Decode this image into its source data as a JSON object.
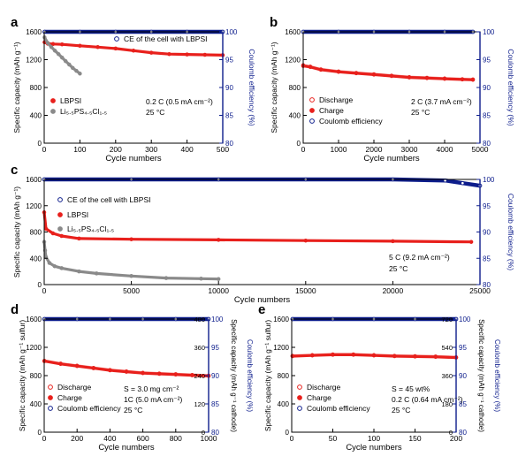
{
  "figure": {
    "colors": {
      "red": "#e8201c",
      "gray": "#8a8a8a",
      "blue": "#0d1d8c",
      "axis": "#000000"
    }
  },
  "chart_data": [
    {
      "panel": "a",
      "type": "line",
      "xlabel": "Cycle numbers",
      "ylabel": "Specific capacity (mAh g⁻¹)",
      "y2label": "Coulomb efficiency (%)",
      "xlim": [
        0,
        500
      ],
      "ylim": [
        0,
        1600
      ],
      "y2lim": [
        80,
        100
      ],
      "xticks": [
        0,
        100,
        200,
        300,
        400,
        500
      ],
      "yticks": [
        0,
        400,
        800,
        1200,
        1600
      ],
      "y2ticks": [
        80,
        85,
        90,
        95,
        100
      ],
      "series": [
        {
          "name": "LBPSI",
          "color": "#e8201c",
          "axis": "left",
          "marker": "filled",
          "x": [
            1,
            10,
            25,
            50,
            100,
            150,
            200,
            250,
            300,
            350,
            400,
            450,
            500
          ],
          "y": [
            1450,
            1430,
            1425,
            1420,
            1400,
            1380,
            1360,
            1330,
            1300,
            1280,
            1275,
            1270,
            1265
          ]
        },
        {
          "name": "Li5.5PS4.5Cl1.5",
          "color": "#8a8a8a",
          "axis": "left",
          "marker": "filled",
          "x": [
            1,
            10,
            20,
            30,
            40,
            50,
            60,
            70,
            80,
            90,
            100
          ],
          "y": [
            1520,
            1440,
            1380,
            1330,
            1280,
            1230,
            1180,
            1130,
            1080,
            1040,
            1000
          ]
        },
        {
          "name": "CE of the cell with LBPSI",
          "color": "#0d1d8c",
          "axis": "right",
          "marker": "open",
          "x": [
            1,
            100,
            200,
            300,
            400,
            500
          ],
          "y": [
            100,
            100,
            100,
            100,
            100,
            100
          ]
        }
      ],
      "legend_items": [
        {
          "marker": "open",
          "color": "#0d1d8c",
          "text": "CE of the cell with LBPSI"
        },
        {
          "marker": "filled",
          "color": "#e8201c",
          "text": "LBPSI"
        },
        {
          "marker": "filled",
          "color": "#8a8a8a",
          "text": "Li₅.₅PS₄.₅Cl₁.₅"
        }
      ],
      "annotations": [
        "0.2 C (0.5 mA cm⁻²)",
        "25 °C"
      ]
    },
    {
      "panel": "b",
      "type": "line",
      "xlabel": "Cycle numbers",
      "ylabel": "Specific capacity (mAh g⁻¹)",
      "y2label": "Coulomb efficiency (%)",
      "xlim": [
        0,
        5000
      ],
      "ylim": [
        0,
        1600
      ],
      "y2lim": [
        80,
        100
      ],
      "xticks": [
        0,
        1000,
        2000,
        3000,
        4000,
        5000
      ],
      "yticks": [
        0,
        400,
        800,
        1200,
        1600
      ],
      "y2ticks": [
        80,
        85,
        90,
        95,
        100
      ],
      "series": [
        {
          "name": "Discharge",
          "color": "#e8201c",
          "axis": "left",
          "marker": "open",
          "x": [
            1,
            200,
            500,
            1000,
            1500,
            2000,
            2500,
            3000,
            3500,
            4000,
            4500,
            4800
          ],
          "y": [
            1120,
            1100,
            1060,
            1030,
            1010,
            990,
            970,
            950,
            940,
            930,
            920,
            915
          ]
        },
        {
          "name": "Charge",
          "color": "#e8201c",
          "axis": "left",
          "marker": "filled",
          "x": [
            1,
            200,
            500,
            1000,
            1500,
            2000,
            2500,
            3000,
            3500,
            4000,
            4500,
            4800
          ],
          "y": [
            1110,
            1095,
            1055,
            1025,
            1005,
            985,
            965,
            945,
            935,
            925,
            915,
            910
          ]
        },
        {
          "name": "Coulomb efficiency",
          "color": "#0d1d8c",
          "axis": "right",
          "marker": "open",
          "x": [
            1,
            1000,
            2000,
            3000,
            4000,
            4800
          ],
          "y": [
            100,
            100,
            100,
            100,
            100,
            100
          ]
        }
      ],
      "legend_items": [
        {
          "marker": "open",
          "color": "#e8201c",
          "text": "Discharge"
        },
        {
          "marker": "filled",
          "color": "#e8201c",
          "text": "Charge"
        },
        {
          "marker": "open",
          "color": "#0d1d8c",
          "text": "Coulomb efficiency"
        }
      ],
      "annotations": [
        "2 C (3.7 mA cm⁻²)",
        "25 °C"
      ]
    },
    {
      "panel": "c",
      "type": "line",
      "xlabel": "Cycle numbers",
      "ylabel": "Specific capacity (mAh g⁻¹)",
      "y2label": "Coulomb efficiency (%)",
      "xlim": [
        0,
        25000
      ],
      "ylim": [
        0,
        1600
      ],
      "y2lim": [
        80,
        100
      ],
      "xticks": [
        0,
        5000,
        10000,
        15000,
        20000,
        25000
      ],
      "yticks": [
        0,
        400,
        800,
        1200,
        1600
      ],
      "y2ticks": [
        80,
        85,
        90,
        95,
        100
      ],
      "series": [
        {
          "name": "LBPSI",
          "color": "#e8201c",
          "axis": "left",
          "marker": "filled",
          "x": [
            1,
            100,
            500,
            1000,
            2000,
            5000,
            10000,
            15000,
            20000,
            24500
          ],
          "y": [
            1100,
            850,
            780,
            740,
            700,
            690,
            680,
            670,
            660,
            650
          ]
        },
        {
          "name": "Li5.5PS4.5Cl1.5",
          "color": "#8a8a8a",
          "axis": "left",
          "marker": "filled",
          "x": [
            1,
            50,
            100,
            300,
            600,
            1000,
            2000,
            3000,
            5000,
            7000,
            9000,
            10000
          ],
          "y": [
            650,
            520,
            420,
            330,
            280,
            250,
            200,
            170,
            130,
            100,
            90,
            85
          ]
        },
        {
          "name": "CE of the cell with LBPSI",
          "color": "#0d1d8c",
          "axis": "right",
          "marker": "open",
          "x": [
            1,
            5000,
            10000,
            15000,
            20000,
            23000,
            24000,
            25000
          ],
          "y": [
            100,
            100,
            100,
            100,
            100,
            99.8,
            99.3,
            98.8
          ]
        }
      ],
      "legend_items": [
        {
          "marker": "open",
          "color": "#0d1d8c",
          "text": "CE of the cell with LBPSI"
        },
        {
          "marker": "filled",
          "color": "#e8201c",
          "text": "LBPSI"
        },
        {
          "marker": "filled",
          "color": "#8a8a8a",
          "text": "Li₅.₅PS₄.₅Cl₁.₅"
        }
      ],
      "annotations": [
        "5 C (9.2 mA cm⁻²)",
        "25 °C"
      ]
    },
    {
      "panel": "d",
      "type": "line",
      "xlabel": "Cycle numbers",
      "ylabel": "Specific capacity (mAh g⁻¹ sulfur)",
      "y2label": "Specific capacity (mAh g⁻¹ cathode)",
      "y3label": "Coulomb efficiency (%)",
      "xlim": [
        0,
        1000
      ],
      "ylim": [
        0,
        1600
      ],
      "y2lim": [
        80,
        100
      ],
      "xticks": [
        0,
        200,
        400,
        600,
        800,
        1000
      ],
      "yticks": [
        0,
        400,
        800,
        1200,
        1600
      ],
      "y2ticks": [
        80,
        85,
        90,
        95,
        100
      ],
      "cathode_ticks": [
        0,
        120,
        240,
        360,
        480
      ],
      "series": [
        {
          "name": "Discharge",
          "color": "#e8201c",
          "axis": "left",
          "marker": "open",
          "x": [
            1,
            100,
            200,
            300,
            400,
            500,
            600,
            700,
            800,
            900,
            1000
          ],
          "y": [
            1010,
            970,
            940,
            910,
            880,
            860,
            840,
            830,
            820,
            810,
            800
          ]
        },
        {
          "name": "Charge",
          "color": "#e8201c",
          "axis": "left",
          "marker": "filled",
          "x": [
            1,
            100,
            200,
            300,
            400,
            500,
            600,
            700,
            800,
            900,
            1000
          ],
          "y": [
            1005,
            965,
            935,
            905,
            875,
            855,
            835,
            825,
            815,
            805,
            795
          ]
        },
        {
          "name": "Coulomb efficiency",
          "color": "#0d1d8c",
          "axis": "right",
          "marker": "open",
          "x": [
            1,
            200,
            400,
            600,
            800,
            1000
          ],
          "y": [
            100,
            100,
            100,
            100,
            100,
            100
          ]
        }
      ],
      "legend_items": [
        {
          "marker": "open",
          "color": "#e8201c",
          "text": "Discharge"
        },
        {
          "marker": "filled",
          "color": "#e8201c",
          "text": "Charge"
        },
        {
          "marker": "open",
          "color": "#0d1d8c",
          "text": "Coulomb efficiency"
        }
      ],
      "annotations": [
        "S = 3.0 mg cm⁻²",
        "1C (5.0 mA cm⁻²)",
        "25 °C"
      ]
    },
    {
      "panel": "e",
      "type": "line",
      "xlabel": "Cycle numbers",
      "ylabel": "Specific capacity (mAh g⁻¹ sulfur)",
      "y2label": "Specific capacity (mAh g⁻¹ cathode)",
      "y3label": "Coulomb efficiency (%)",
      "xlim": [
        0,
        200
      ],
      "ylim": [
        0,
        1600
      ],
      "y2lim": [
        80,
        100
      ],
      "xticks": [
        0,
        50,
        100,
        150,
        200
      ],
      "yticks": [
        0,
        400,
        800,
        1200,
        1600
      ],
      "y2ticks": [
        80,
        85,
        90,
        95,
        100
      ],
      "cathode_ticks": [
        0,
        180,
        360,
        540,
        720
      ],
      "series": [
        {
          "name": "Discharge",
          "color": "#e8201c",
          "axis": "left",
          "marker": "open",
          "x": [
            1,
            25,
            50,
            75,
            100,
            125,
            150,
            175,
            200
          ],
          "y": [
            1080,
            1090,
            1100,
            1100,
            1090,
            1080,
            1075,
            1070,
            1060
          ]
        },
        {
          "name": "Charge",
          "color": "#e8201c",
          "axis": "left",
          "marker": "filled",
          "x": [
            1,
            25,
            50,
            75,
            100,
            125,
            150,
            175,
            200
          ],
          "y": [
            1075,
            1085,
            1095,
            1095,
            1085,
            1075,
            1070,
            1065,
            1055
          ]
        },
        {
          "name": "Coulomb efficiency",
          "color": "#0d1d8c",
          "axis": "right",
          "marker": "open",
          "x": [
            1,
            50,
            100,
            150,
            200
          ],
          "y": [
            100,
            100,
            100,
            100,
            100
          ]
        }
      ],
      "legend_items": [
        {
          "marker": "open",
          "color": "#e8201c",
          "text": "Discharge"
        },
        {
          "marker": "filled",
          "color": "#e8201c",
          "text": "Charge"
        },
        {
          "marker": "open",
          "color": "#0d1d8c",
          "text": "Coulomb efficiency"
        }
      ],
      "annotations": [
        "S = 45 wt%",
        "0.2 C (0.64 mA cm⁻²)",
        "25 °C"
      ]
    }
  ]
}
